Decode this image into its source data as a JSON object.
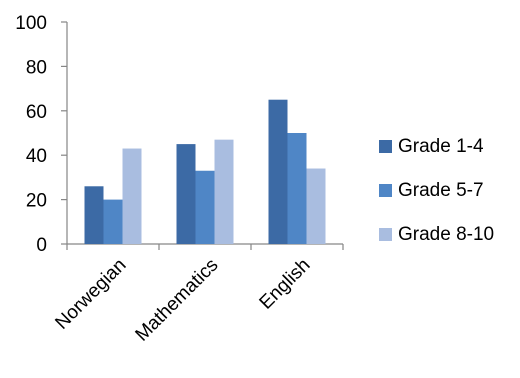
{
  "chart_data": {
    "type": "bar",
    "title": "",
    "xlabel": "",
    "ylabel": "",
    "categories": [
      "Norwegian",
      "Mathematics",
      "English"
    ],
    "series": [
      {
        "name": "Grade 1-4",
        "values": [
          26,
          45,
          65
        ],
        "color": "#3c6aa5"
      },
      {
        "name": "Grade 5-7",
        "values": [
          20,
          33,
          50
        ],
        "color": "#4f86c6"
      },
      {
        "name": "Grade 8-10",
        "values": [
          43,
          47,
          34
        ],
        "color": "#a9bde0"
      }
    ],
    "ylim": [
      0,
      100
    ],
    "yticks": [
      "0",
      "20",
      "40",
      "60",
      "80",
      "100"
    ],
    "grid": false,
    "legend_position": "right"
  }
}
